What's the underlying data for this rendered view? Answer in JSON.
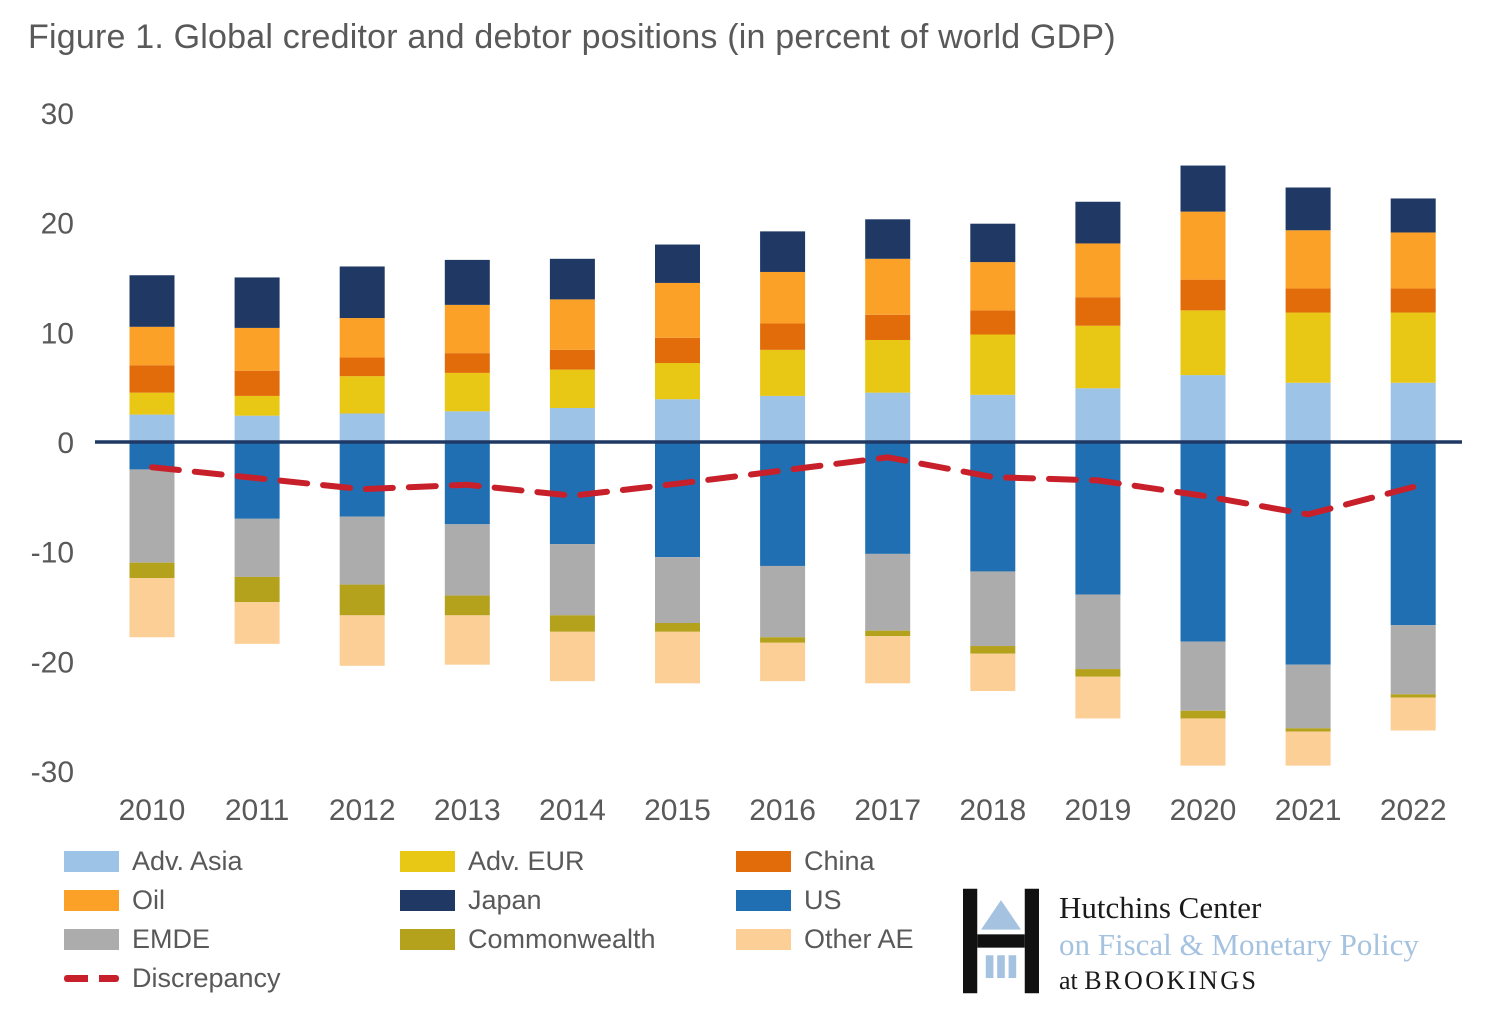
{
  "chart_data": {
    "type": "bar",
    "stacked": true,
    "title": "Figure 1. Global creditor and debtor positions (in percent of world GDP)",
    "xlabel": "",
    "ylabel": "",
    "ylim": [
      -30,
      30
    ],
    "yticks": [
      30,
      20,
      10,
      0,
      -10,
      -20,
      -30
    ],
    "grid": false,
    "legend_position": "bottom",
    "categories": [
      "2010",
      "2011",
      "2012",
      "2013",
      "2014",
      "2015",
      "2016",
      "2017",
      "2018",
      "2019",
      "2020",
      "2021",
      "2022"
    ],
    "series": [
      {
        "name": "Adv. Asia",
        "color": "#9DC3E6",
        "values": [
          2.5,
          2.4,
          2.6,
          2.8,
          3.1,
          3.9,
          4.2,
          4.5,
          4.3,
          4.9,
          6.1,
          5.4,
          5.4
        ]
      },
      {
        "name": "Adv. EUR",
        "color": "#E9C715",
        "values": [
          2.0,
          1.8,
          3.4,
          3.5,
          3.5,
          3.3,
          4.2,
          4.8,
          5.5,
          5.7,
          5.9,
          6.4,
          6.4
        ]
      },
      {
        "name": "China",
        "color": "#E36C0A",
        "values": [
          2.5,
          2.3,
          1.7,
          1.8,
          1.8,
          2.3,
          2.4,
          2.3,
          2.2,
          2.6,
          2.8,
          2.2,
          2.2
        ]
      },
      {
        "name": "Oil",
        "color": "#FBA128",
        "values": [
          3.5,
          3.9,
          3.6,
          4.4,
          4.6,
          5.0,
          4.7,
          5.1,
          4.4,
          4.9,
          6.2,
          5.3,
          5.1
        ]
      },
      {
        "name": "Japan",
        "color": "#1F3864",
        "values": [
          4.7,
          4.6,
          4.7,
          4.1,
          3.7,
          3.5,
          3.7,
          3.6,
          3.5,
          3.8,
          4.2,
          3.9,
          3.1
        ]
      },
      {
        "name": "US",
        "color": "#1F6FB2",
        "values": [
          -2.5,
          -7.0,
          -6.8,
          -7.5,
          -9.3,
          -10.5,
          -11.3,
          -10.2,
          -11.8,
          -13.9,
          -18.2,
          -20.3,
          -16.7
        ]
      },
      {
        "name": "EMDE",
        "color": "#ACACAC",
        "values": [
          -8.5,
          -5.3,
          -6.2,
          -6.5,
          -6.5,
          -6.0,
          -6.5,
          -7.0,
          -6.8,
          -6.8,
          -6.3,
          -5.8,
          -6.3
        ]
      },
      {
        "name": "Commonwealth",
        "color": "#B4A11C",
        "values": [
          -1.4,
          -2.3,
          -2.8,
          -1.8,
          -1.5,
          -0.8,
          -0.5,
          -0.5,
          -0.7,
          -0.7,
          -0.7,
          -0.3,
          -0.3
        ]
      },
      {
        "name": "Other AE",
        "color": "#FCCF97",
        "values": [
          -5.4,
          -3.8,
          -4.6,
          -4.5,
          -4.5,
          -4.7,
          -3.5,
          -4.3,
          -3.4,
          -3.8,
          -4.3,
          -3.1,
          -3.0
        ]
      }
    ],
    "line_series": {
      "name": "Discrepancy",
      "color": "#C8202A",
      "style": "dashed",
      "values": [
        -2.3,
        -3.3,
        -4.3,
        -3.9,
        -4.9,
        -3.8,
        -2.6,
        -1.4,
        -3.2,
        -3.5,
        -4.9,
        -6.6,
        -4.1
      ]
    }
  },
  "legend": {
    "items": [
      {
        "label": "Adv. Asia",
        "color": "#9DC3E6",
        "type": "box"
      },
      {
        "label": "Adv. EUR",
        "color": "#E9C715",
        "type": "box"
      },
      {
        "label": "China",
        "color": "#E36C0A",
        "type": "box"
      },
      {
        "label": "Oil",
        "color": "#FBA128",
        "type": "box"
      },
      {
        "label": "Japan",
        "color": "#1F3864",
        "type": "box"
      },
      {
        "label": "US",
        "color": "#1F6FB2",
        "type": "box"
      },
      {
        "label": "EMDE",
        "color": "#ACACAC",
        "type": "box"
      },
      {
        "label": "Commonwealth",
        "color": "#B4A11C",
        "type": "box"
      },
      {
        "label": "Other AE",
        "color": "#FCCF97",
        "type": "box"
      },
      {
        "label": "Discrepancy",
        "color": "#C8202A",
        "type": "line"
      }
    ]
  },
  "logo": {
    "line1": "Hutchins Center",
    "line2": "on Fiscal & Monetary Policy",
    "line3_prefix": "at ",
    "line3_name": "BROOKINGS"
  },
  "colors": {
    "axis_text": "#595959",
    "zero_line": "#1F3864",
    "logo_blue": "#A5C3E0"
  }
}
